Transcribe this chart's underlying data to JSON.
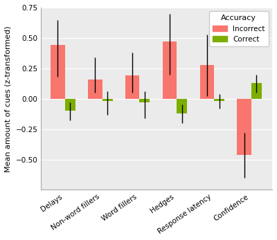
{
  "categories": [
    "Delays",
    "Non-word fillers",
    "Word fillers",
    "Hedges",
    "Response latency",
    "Confidence"
  ],
  "incorrect_mean": [
    0.44,
    0.16,
    0.19,
    0.47,
    0.28,
    -0.46
  ],
  "incorrect_ci_lower": [
    0.18,
    0.05,
    0.05,
    0.2,
    0.02,
    -0.65
  ],
  "incorrect_ci_upper": [
    0.65,
    0.34,
    0.38,
    0.7,
    0.53,
    -0.28
  ],
  "incorrect_bar_bottom": [
    0.0,
    0.0,
    0.0,
    0.0,
    0.0,
    -0.46
  ],
  "incorrect_bar_top": [
    0.44,
    0.16,
    0.19,
    0.47,
    0.28,
    0.0
  ],
  "correct_mean": [
    -0.1,
    -0.02,
    -0.03,
    -0.12,
    -0.02,
    0.13
  ],
  "correct_ci_lower": [
    -0.18,
    -0.13,
    -0.16,
    -0.2,
    -0.08,
    0.05
  ],
  "correct_ci_upper": [
    -0.03,
    0.06,
    0.06,
    -0.05,
    0.04,
    0.2
  ],
  "correct_bar_bottom": [
    -0.1,
    -0.02,
    -0.03,
    -0.12,
    -0.02,
    0.0
  ],
  "correct_bar_top": [
    0.0,
    0.0,
    0.0,
    0.0,
    0.0,
    0.13
  ],
  "incorrect_color": "#F8766D",
  "correct_color": "#7CAE00",
  "incorrect_bar_width": 0.38,
  "correct_bar_width": 0.28,
  "ylim": [
    -0.75,
    0.75
  ],
  "yticks": [
    -0.5,
    -0.25,
    0.0,
    0.25,
    0.5,
    0.75
  ],
  "ylabel": "Mean amount of cues (z-transformed)",
  "legend_title": "Accuracy",
  "legend_labels": [
    "Incorrect",
    "Correct"
  ],
  "background_color": "#FFFFFF",
  "panel_background": "#EBEBEB"
}
